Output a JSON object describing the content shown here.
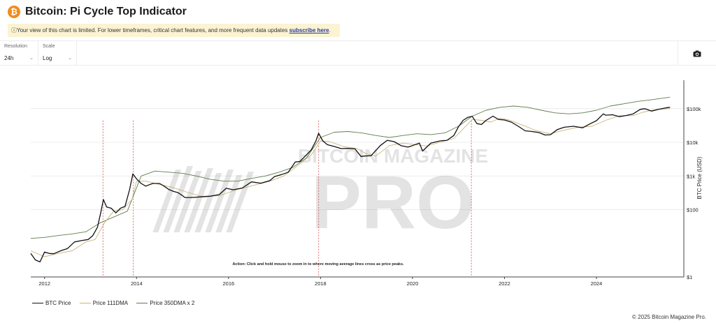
{
  "header": {
    "logo_symbol": "₿",
    "title": "Bitcoin: Pi Cycle Top Indicator",
    "notice_text": "Your view of this chart is limited. For lower timeframes, critical chart features, and more frequent data updates ",
    "notice_link": "subscribe here",
    "notice_end": "."
  },
  "controls": {
    "resolution": {
      "label": "Resolution",
      "value": "24h"
    },
    "scale": {
      "label": "Scale",
      "value": "Log"
    },
    "camera_icon": "camera-icon"
  },
  "watermark": {
    "line1": "BITCOIN MAGAZINE",
    "line2": "PRO"
  },
  "chart_data": {
    "type": "line",
    "log_scale": true,
    "grid": "horizontal",
    "ylabel": "BTC Price (USD)",
    "xlabel": "",
    "xlim": [
      2011.7,
      2025.9
    ],
    "ylim": [
      1,
      700000
    ],
    "x_ticks": [
      "2012",
      "2014",
      "2016",
      "2018",
      "2020",
      "2022",
      "2024"
    ],
    "y_ticks": [
      {
        "label": "$1",
        "value": 1
      },
      {
        "label": "$100",
        "value": 100
      },
      {
        "label": "$1k",
        "value": 1000
      },
      {
        "label": "$10k",
        "value": 10000
      },
      {
        "label": "$100k",
        "value": 100000
      }
    ],
    "annotation": "Action: Click and hold mouse to zoom in to where moving average lines cross as price peaks.",
    "cross_events": [
      2013.27,
      2013.93,
      2017.96,
      2021.28
    ],
    "series": [
      {
        "name": "BTC Price",
        "color": "#111111",
        "x": [
          2011.7,
          2011.8,
          2011.9,
          2012.0,
          2012.1,
          2012.2,
          2012.35,
          2012.5,
          2012.65,
          2012.8,
          2012.95,
          2013.05,
          2013.15,
          2013.22,
          2013.28,
          2013.35,
          2013.45,
          2013.55,
          2013.65,
          2013.75,
          2013.85,
          2013.92,
          2014.0,
          2014.1,
          2014.2,
          2014.35,
          2014.5,
          2014.6,
          2014.7,
          2014.8,
          2014.9,
          2015.0,
          2015.05,
          2015.2,
          2015.4,
          2015.6,
          2015.8,
          2015.95,
          2016.1,
          2016.3,
          2016.5,
          2016.7,
          2016.9,
          2017.0,
          2017.15,
          2017.3,
          2017.45,
          2017.55,
          2017.7,
          2017.8,
          2017.9,
          2017.96,
          2018.05,
          2018.15,
          2018.3,
          2018.45,
          2018.6,
          2018.75,
          2018.88,
          2018.95,
          2019.1,
          2019.3,
          2019.45,
          2019.6,
          2019.75,
          2019.9,
          2020.0,
          2020.15,
          2020.22,
          2020.4,
          2020.6,
          2020.75,
          2020.9,
          2021.0,
          2021.1,
          2021.2,
          2021.3,
          2021.4,
          2021.5,
          2021.6,
          2021.75,
          2021.87,
          2022.0,
          2022.15,
          2022.3,
          2022.45,
          2022.6,
          2022.75,
          2022.88,
          2023.0,
          2023.15,
          2023.3,
          2023.5,
          2023.7,
          2023.85,
          2024.0,
          2024.15,
          2024.2,
          2024.35,
          2024.5,
          2024.65,
          2024.8,
          2024.95,
          2025.05,
          2025.2,
          2025.35,
          2025.5,
          2025.6
        ],
        "y": [
          5,
          3.2,
          2.8,
          5.5,
          5,
          4.9,
          6,
          7,
          11,
          12,
          13,
          17,
          30,
          80,
          200,
          120,
          110,
          80,
          110,
          125,
          400,
          1150,
          820,
          600,
          500,
          600,
          600,
          500,
          400,
          350,
          320,
          260,
          230,
          230,
          240,
          250,
          280,
          430,
          390,
          440,
          670,
          610,
          730,
          960,
          1100,
          1300,
          2600,
          2700,
          4300,
          6000,
          11000,
          18500,
          11000,
          8500,
          7500,
          6500,
          6600,
          6400,
          3800,
          3900,
          4000,
          8000,
          11500,
          10500,
          8000,
          7200,
          8000,
          9500,
          5500,
          9500,
          11000,
          11500,
          16000,
          29000,
          45000,
          55000,
          59000,
          36000,
          34000,
          45000,
          60000,
          48000,
          46000,
          40000,
          30000,
          22000,
          21000,
          19500,
          16500,
          16800,
          24000,
          28000,
          30000,
          27000,
          35000,
          44000,
          70000,
          64000,
          66000,
          58000,
          63000,
          70000,
          95000,
          100000,
          85000,
          95000,
          105000,
          110000
        ]
      },
      {
        "name": "Price 111DMA",
        "color": "#c8b47a",
        "x": [
          2011.7,
          2012.0,
          2012.3,
          2012.6,
          2012.9,
          2013.1,
          2013.3,
          2013.5,
          2013.7,
          2013.9,
          2014.0,
          2014.2,
          2014.5,
          2014.8,
          2015.1,
          2015.4,
          2015.8,
          2016.2,
          2016.6,
          2016.9,
          2017.2,
          2017.5,
          2017.8,
          2018.0,
          2018.2,
          2018.5,
          2018.8,
          2019.0,
          2019.2,
          2019.5,
          2019.8,
          2020.1,
          2020.3,
          2020.6,
          2020.9,
          2021.1,
          2021.3,
          2021.5,
          2021.7,
          2021.9,
          2022.1,
          2022.4,
          2022.7,
          2023.0,
          2023.3,
          2023.6,
          2023.9,
          2024.2,
          2024.5,
          2024.8,
          2025.0,
          2025.3,
          2025.6
        ],
        "y": [
          6,
          4,
          5,
          6,
          11,
          13,
          40,
          90,
          100,
          200,
          700,
          700,
          560,
          450,
          330,
          250,
          260,
          400,
          550,
          700,
          1000,
          2000,
          4200,
          11000,
          10500,
          7500,
          6500,
          4500,
          3900,
          8000,
          9500,
          8400,
          7800,
          10000,
          13000,
          25000,
          48000,
          45000,
          40000,
          52000,
          46000,
          32000,
          22000,
          18000,
          23000,
          28000,
          30000,
          45000,
          62000,
          62000,
          78000,
          95000,
          100000
        ]
      },
      {
        "name": "Price 350DMA x 2",
        "color": "#5e7d4c",
        "x": [
          2011.7,
          2012.0,
          2012.3,
          2012.6,
          2012.9,
          2013.2,
          2013.5,
          2013.8,
          2014.1,
          2014.4,
          2014.7,
          2015.0,
          2015.3,
          2015.6,
          2015.9,
          2016.2,
          2016.5,
          2016.8,
          2017.1,
          2017.4,
          2017.7,
          2018.0,
          2018.3,
          2018.6,
          2018.9,
          2019.2,
          2019.5,
          2019.8,
          2020.1,
          2020.4,
          2020.7,
          2021.0,
          2021.3,
          2021.6,
          2021.9,
          2022.2,
          2022.5,
          2022.8,
          2023.1,
          2023.4,
          2023.7,
          2024.0,
          2024.3,
          2024.6,
          2024.9,
          2025.2,
          2025.6
        ],
        "y": [
          14,
          15,
          17,
          19,
          22,
          40,
          60,
          90,
          1000,
          1400,
          1300,
          1200,
          1000,
          800,
          700,
          700,
          850,
          1000,
          1300,
          1800,
          3500,
          14000,
          20000,
          21000,
          19000,
          16000,
          14000,
          16000,
          18000,
          17000,
          19000,
          30000,
          60000,
          90000,
          110000,
          120000,
          110000,
          90000,
          75000,
          70000,
          75000,
          90000,
          120000,
          140000,
          165000,
          185000,
          220000
        ]
      }
    ]
  },
  "footer": {
    "copyright": "© 2025 Bitcoin Magazine Pro."
  }
}
